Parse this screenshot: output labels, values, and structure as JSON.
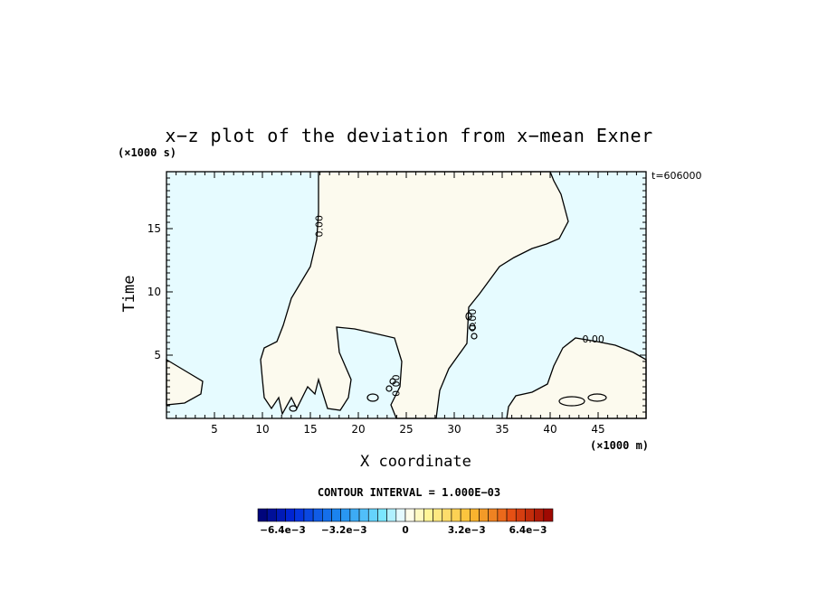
{
  "chart_data": {
    "type": "contour",
    "title": "x−z plot of the deviation from x−mean Exner",
    "xlabel": "X coordinate",
    "ylabel": "Time",
    "x_units": "(×1000 m)",
    "y_units": "(×1000 s)",
    "timestamp": "t=606000",
    "xlim": [
      0,
      50
    ],
    "ylim": [
      0,
      19.5
    ],
    "x_ticks": [
      5,
      10,
      15,
      20,
      25,
      30,
      35,
      40,
      45
    ],
    "y_ticks": [
      5,
      10,
      15
    ],
    "contour_interval_label": "CONTOUR INTERVAL = 1.000E−03",
    "contour_labels": [
      {
        "text": "0.00",
        "x": 16,
        "y": 15.2,
        "rotate": -90
      },
      {
        "text": "0.00",
        "x": 24,
        "y": 2.6,
        "rotate": -90
      },
      {
        "text": "0.00",
        "x": 32,
        "y": 7.8,
        "rotate": -90
      },
      {
        "text": "0.00",
        "x": 44.5,
        "y": 6.2,
        "rotate": 0
      }
    ],
    "colorbar": {
      "min": -0.0077,
      "max": 0.0077,
      "steps": 32,
      "tick_labels": [
        "−6.4e−3",
        "−3.2e−3",
        "0",
        "3.2e−3",
        "6.4e−3"
      ],
      "tick_values": [
        -0.0064,
        -0.0032,
        0,
        0.0032,
        0.0064
      ]
    },
    "field_colors": {
      "negative": "#e6fbff",
      "positive": "#fcfaee"
    }
  }
}
